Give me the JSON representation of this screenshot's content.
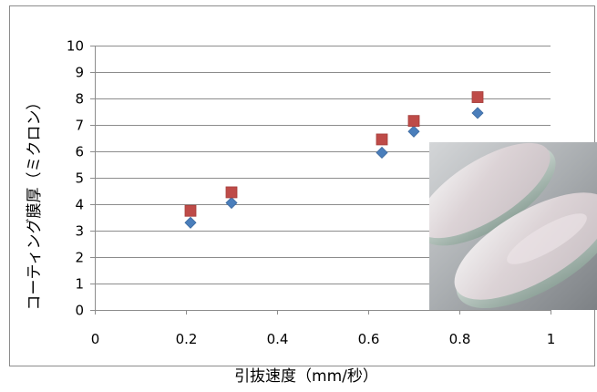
{
  "chart_data": {
    "type": "scatter",
    "title": "",
    "xlabel": "引抜速度（mm/秒）",
    "ylabel": "コーティング膜厚（ミクロン）",
    "xlim": [
      0,
      1
    ],
    "ylim": [
      0,
      10
    ],
    "x_ticks": [
      "0",
      "0.2",
      "0.4",
      "0.6",
      "0.8",
      "1"
    ],
    "y_ticks": [
      "0",
      "1",
      "2",
      "3",
      "4",
      "5",
      "6",
      "7",
      "8",
      "9",
      "10"
    ],
    "grid": "horizontal",
    "legend": "none",
    "series": [
      {
        "marker": "diamond",
        "color": "#4a7ebb",
        "points": [
          {
            "x": 0.21,
            "y": 3.3
          },
          {
            "x": 0.3,
            "y": 4.05
          },
          {
            "x": 0.63,
            "y": 5.95
          },
          {
            "x": 0.7,
            "y": 6.75
          },
          {
            "x": 0.84,
            "y": 7.45
          }
        ]
      },
      {
        "marker": "square",
        "color": "#be4b48",
        "points": [
          {
            "x": 0.21,
            "y": 3.75
          },
          {
            "x": 0.3,
            "y": 4.45
          },
          {
            "x": 0.63,
            "y": 6.45
          },
          {
            "x": 0.7,
            "y": 7.15
          },
          {
            "x": 0.84,
            "y": 8.05
          }
        ]
      }
    ]
  },
  "photo": {
    "subject": "coated-glass-lenses"
  }
}
